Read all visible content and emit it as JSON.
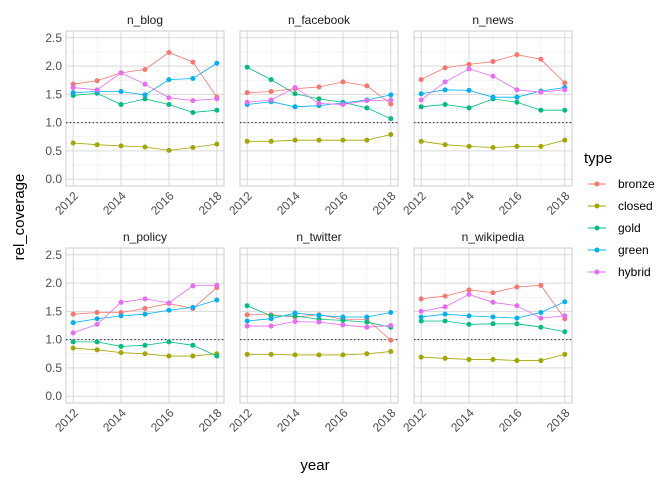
{
  "chart_data": {
    "type": "line",
    "xlabel": "year",
    "ylabel": "rel_coverage",
    "x": [
      2012,
      2013,
      2014,
      2015,
      2016,
      2017,
      2018
    ],
    "x_ticks": [
      2012,
      2014,
      2016,
      2018
    ],
    "xlim": [
      2011.7,
      2018.3
    ],
    "y_ticks": [
      0.0,
      0.5,
      1.0,
      1.5,
      2.0,
      2.5
    ],
    "ylim": [
      -0.12,
      2.62
    ],
    "reference_line": 1.0,
    "grid": true,
    "legend": {
      "title": "type",
      "position": "right",
      "entries": [
        "bronze",
        "closed",
        "gold",
        "green",
        "hybrid"
      ]
    },
    "colors": {
      "bronze": "#F8766D",
      "closed": "#A3A500",
      "gold": "#00BF7D",
      "green": "#00B0F6",
      "hybrid": "#E76BF3"
    },
    "panels": [
      {
        "title": "n_blog",
        "series": [
          {
            "name": "bronze",
            "values": [
              1.68,
              1.74,
              1.88,
              1.94,
              2.24,
              2.07,
              1.45
            ]
          },
          {
            "name": "closed",
            "values": [
              0.64,
              0.61,
              0.59,
              0.57,
              0.51,
              0.56,
              0.62
            ]
          },
          {
            "name": "gold",
            "values": [
              1.48,
              1.52,
              1.32,
              1.42,
              1.32,
              1.18,
              1.22
            ]
          },
          {
            "name": "green",
            "values": [
              1.53,
              1.55,
              1.55,
              1.49,
              1.76,
              1.78,
              2.05
            ]
          },
          {
            "name": "hybrid",
            "values": [
              1.62,
              1.58,
              1.88,
              1.68,
              1.44,
              1.39,
              1.42
            ]
          }
        ]
      },
      {
        "title": "n_facebook",
        "series": [
          {
            "name": "bronze",
            "values": [
              1.53,
              1.55,
              1.6,
              1.63,
              1.72,
              1.65,
              1.33
            ]
          },
          {
            "name": "closed",
            "values": [
              0.67,
              0.67,
              0.69,
              0.69,
              0.69,
              0.69,
              0.79
            ]
          },
          {
            "name": "gold",
            "values": [
              1.98,
              1.76,
              1.51,
              1.42,
              1.36,
              1.26,
              1.07
            ]
          },
          {
            "name": "green",
            "values": [
              1.32,
              1.37,
              1.28,
              1.3,
              1.35,
              1.4,
              1.49
            ]
          },
          {
            "name": "hybrid",
            "values": [
              1.36,
              1.4,
              1.62,
              1.34,
              1.32,
              1.39,
              1.4
            ]
          }
        ]
      },
      {
        "title": "n_news",
        "series": [
          {
            "name": "bronze",
            "values": [
              1.76,
              1.97,
              2.03,
              2.08,
              2.2,
              2.12,
              1.7
            ]
          },
          {
            "name": "closed",
            "values": [
              0.67,
              0.61,
              0.58,
              0.56,
              0.58,
              0.58,
              0.69
            ]
          },
          {
            "name": "gold",
            "values": [
              1.28,
              1.32,
              1.26,
              1.42,
              1.36,
              1.22,
              1.22
            ]
          },
          {
            "name": "green",
            "values": [
              1.51,
              1.58,
              1.57,
              1.45,
              1.45,
              1.56,
              1.62
            ]
          },
          {
            "name": "hybrid",
            "values": [
              1.4,
              1.72,
              1.95,
              1.82,
              1.58,
              1.54,
              1.58
            ]
          }
        ]
      },
      {
        "title": "n_policy",
        "series": [
          {
            "name": "bronze",
            "values": [
              1.45,
              1.48,
              1.48,
              1.55,
              1.64,
              1.55,
              1.92
            ]
          },
          {
            "name": "closed",
            "values": [
              0.85,
              0.82,
              0.77,
              0.75,
              0.71,
              0.71,
              0.75
            ]
          },
          {
            "name": "gold",
            "values": [
              0.96,
              0.96,
              0.88,
              0.9,
              0.96,
              0.9,
              0.71
            ]
          },
          {
            "name": "green",
            "values": [
              1.3,
              1.37,
              1.42,
              1.45,
              1.52,
              1.57,
              1.7
            ]
          },
          {
            "name": "hybrid",
            "values": [
              1.12,
              1.27,
              1.66,
              1.72,
              1.65,
              1.95,
              1.96
            ]
          }
        ]
      },
      {
        "title": "n_twitter",
        "series": [
          {
            "name": "bronze",
            "values": [
              1.44,
              1.44,
              1.4,
              1.44,
              1.36,
              1.36,
              0.99
            ]
          },
          {
            "name": "closed",
            "values": [
              0.74,
              0.74,
              0.73,
              0.73,
              0.73,
              0.75,
              0.79
            ]
          },
          {
            "name": "gold",
            "values": [
              1.6,
              1.42,
              1.42,
              1.36,
              1.34,
              1.31,
              1.22
            ]
          },
          {
            "name": "green",
            "values": [
              1.33,
              1.37,
              1.47,
              1.43,
              1.4,
              1.4,
              1.48
            ]
          },
          {
            "name": "hybrid",
            "values": [
              1.24,
              1.24,
              1.32,
              1.31,
              1.26,
              1.22,
              1.25
            ]
          }
        ]
      },
      {
        "title": "n_wikipedia",
        "series": [
          {
            "name": "bronze",
            "values": [
              1.72,
              1.77,
              1.88,
              1.83,
              1.93,
              1.96,
              1.37
            ]
          },
          {
            "name": "closed",
            "values": [
              0.69,
              0.67,
              0.65,
              0.65,
              0.63,
              0.63,
              0.74
            ]
          },
          {
            "name": "gold",
            "values": [
              1.33,
              1.33,
              1.27,
              1.28,
              1.28,
              1.22,
              1.14
            ]
          },
          {
            "name": "green",
            "values": [
              1.4,
              1.45,
              1.42,
              1.4,
              1.38,
              1.48,
              1.67
            ]
          },
          {
            "name": "hybrid",
            "values": [
              1.5,
              1.58,
              1.8,
              1.66,
              1.6,
              1.38,
              1.42
            ]
          }
        ]
      }
    ]
  }
}
